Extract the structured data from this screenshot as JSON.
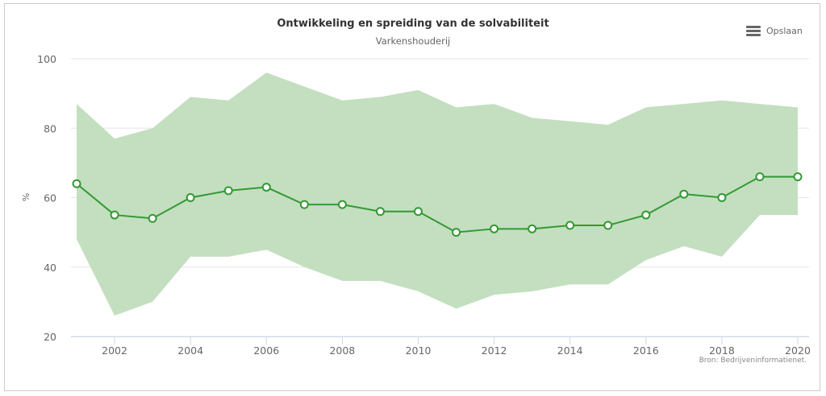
{
  "header": {
    "title": "Ontwikkeling en spreiding van de solvabiliteit",
    "subtitle": "Varkenshouderij",
    "save_label": "Opslaan",
    "save_icon": "hamburger-menu-icon"
  },
  "credits": "Bron: Bedrijveninformatienet.",
  "chart_data": {
    "type": "line",
    "title": "Ontwikkeling en spreiding van de solvabiliteit",
    "subtitle": "Varkenshouderij",
    "xlabel": "",
    "ylabel": "%",
    "ylim": [
      20,
      100
    ],
    "xlim": [
      2001,
      2020
    ],
    "yticks": [
      20,
      40,
      60,
      80,
      100
    ],
    "xticks": [
      2002,
      2004,
      2006,
      2008,
      2010,
      2012,
      2014,
      2016,
      2018,
      2020
    ],
    "grid": true,
    "colors": {
      "line": "#339933",
      "band": "#c3dfc0"
    },
    "x": [
      2001,
      2002,
      2003,
      2004,
      2005,
      2006,
      2007,
      2008,
      2009,
      2010,
      2011,
      2012,
      2013,
      2014,
      2015,
      2016,
      2017,
      2018,
      2019,
      2020
    ],
    "series": [
      {
        "type": "line",
        "values": [
          64,
          55,
          54,
          60,
          62,
          63,
          58,
          58,
          56,
          56,
          50,
          51,
          51,
          52,
          52,
          55,
          61,
          60,
          66,
          66
        ]
      },
      {
        "type": "arearange",
        "low": [
          48,
          26,
          30,
          43,
          43,
          45,
          40,
          36,
          36,
          33,
          28,
          32,
          33,
          35,
          35,
          42,
          46,
          43,
          55,
          55
        ],
        "high": [
          87,
          77,
          80,
          89,
          88,
          96,
          92,
          88,
          89,
          91,
          86,
          87,
          83,
          82,
          81,
          86,
          87,
          88,
          87,
          86
        ]
      }
    ]
  }
}
